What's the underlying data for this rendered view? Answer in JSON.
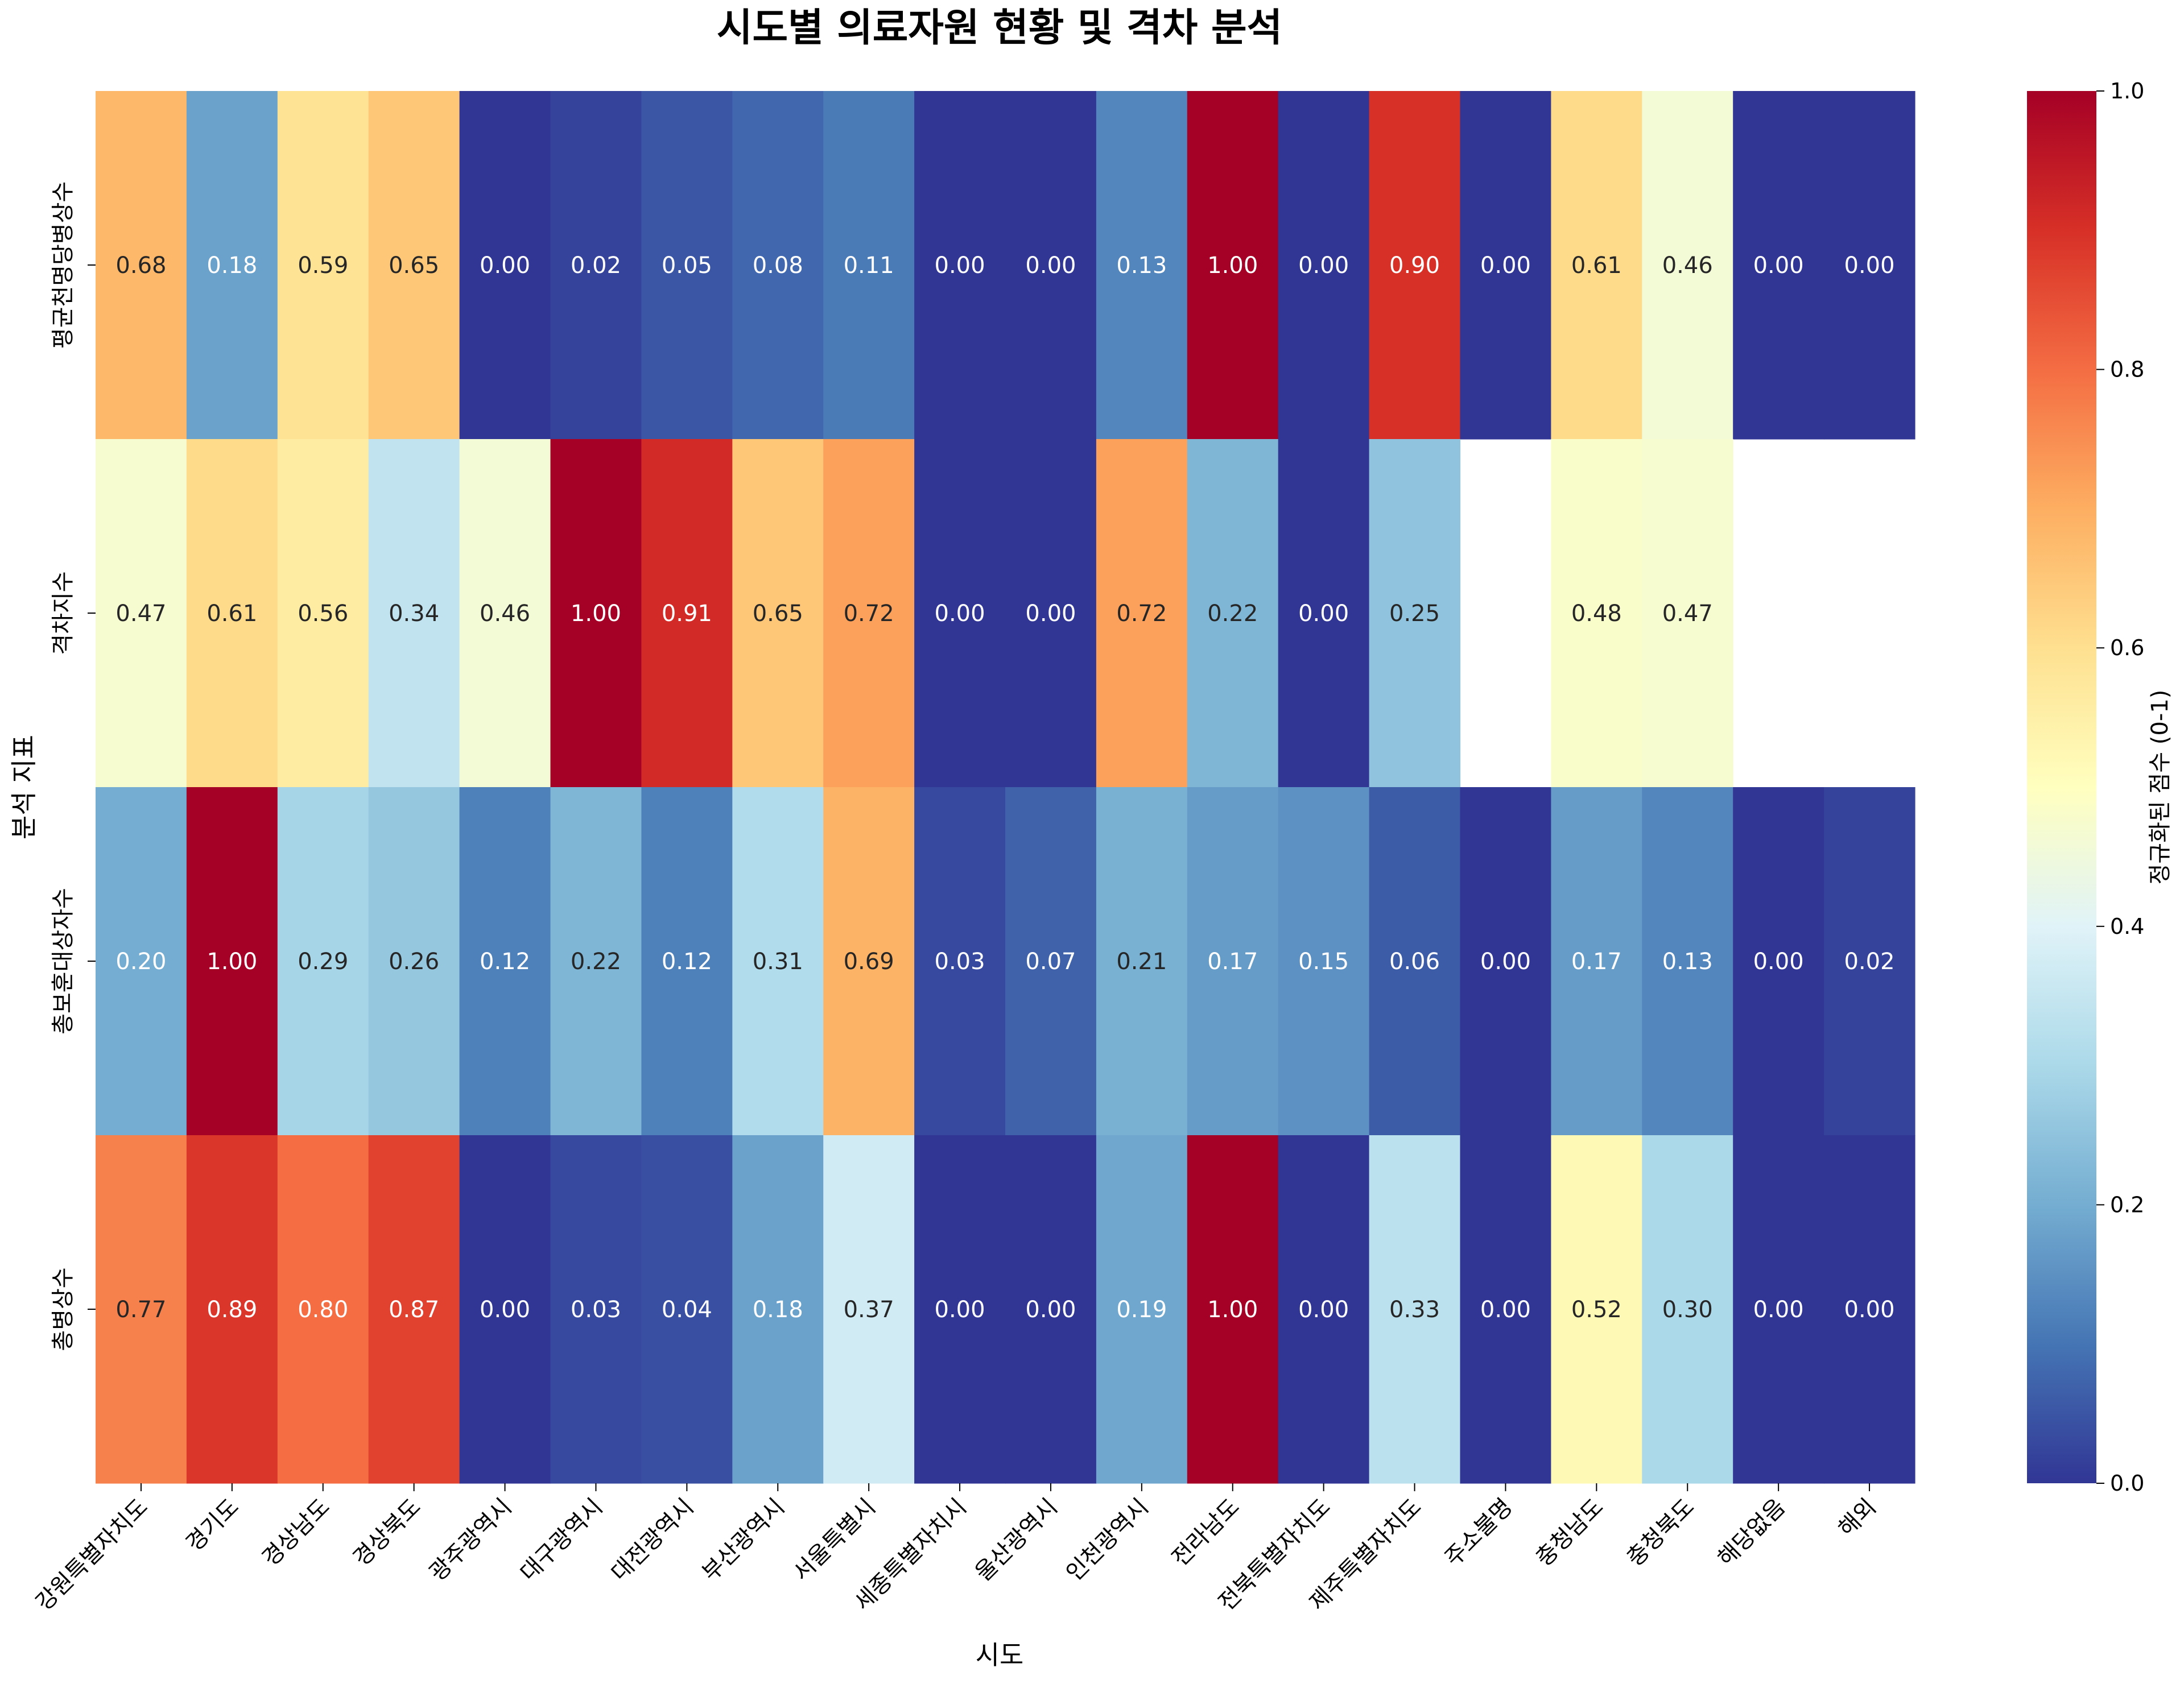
{
  "chart_data": {
    "type": "heatmap",
    "title": "시도별 의료자원 현황 및 격차 분석",
    "xlabel": "시도",
    "ylabel": "분석 지표",
    "colorbar_label": "정규화된 점수 (0-1)",
    "colorbar_ticks": [
      "0.0",
      "0.2",
      "0.4",
      "0.6",
      "0.8",
      "1.0"
    ],
    "value_range": [
      0,
      1
    ],
    "colormap": "RdYlBu_r",
    "annotation_format": "0.00",
    "x_categories": [
      "강원특별자치도",
      "경기도",
      "경상남도",
      "경상북도",
      "광주광역시",
      "대구광역시",
      "대전광역시",
      "부산광역시",
      "서울특별시",
      "세종특별자치시",
      "울산광역시",
      "인천광역시",
      "전라남도",
      "전북특별자치도",
      "제주특별자치도",
      "주소불명",
      "충청남도",
      "충청북도",
      "해당없음",
      "해외"
    ],
    "y_categories": [
      "평균천명당병상수",
      "격차지수",
      "총보훈대상자수",
      "총병상수"
    ],
    "values": [
      [
        0.68,
        0.18,
        0.59,
        0.65,
        0.0,
        0.02,
        0.05,
        0.08,
        0.11,
        0.0,
        0.0,
        0.13,
        1.0,
        0.0,
        0.9,
        0.0,
        0.61,
        0.46,
        0.0,
        0.0
      ],
      [
        0.47,
        0.61,
        0.56,
        0.34,
        0.46,
        1.0,
        0.91,
        0.65,
        0.72,
        0.0,
        0.0,
        0.72,
        0.22,
        0.0,
        0.25,
        null,
        0.48,
        0.47,
        null,
        null
      ],
      [
        0.2,
        1.0,
        0.29,
        0.26,
        0.12,
        0.22,
        0.12,
        0.31,
        0.69,
        0.03,
        0.07,
        0.21,
        0.17,
        0.15,
        0.06,
        0.0,
        0.17,
        0.13,
        0.0,
        0.02
      ],
      [
        0.77,
        0.89,
        0.8,
        0.87,
        0.0,
        0.03,
        0.04,
        0.18,
        0.37,
        0.0,
        0.0,
        0.19,
        1.0,
        0.0,
        0.33,
        0.0,
        0.52,
        0.3,
        0.0,
        0.0
      ]
    ]
  }
}
